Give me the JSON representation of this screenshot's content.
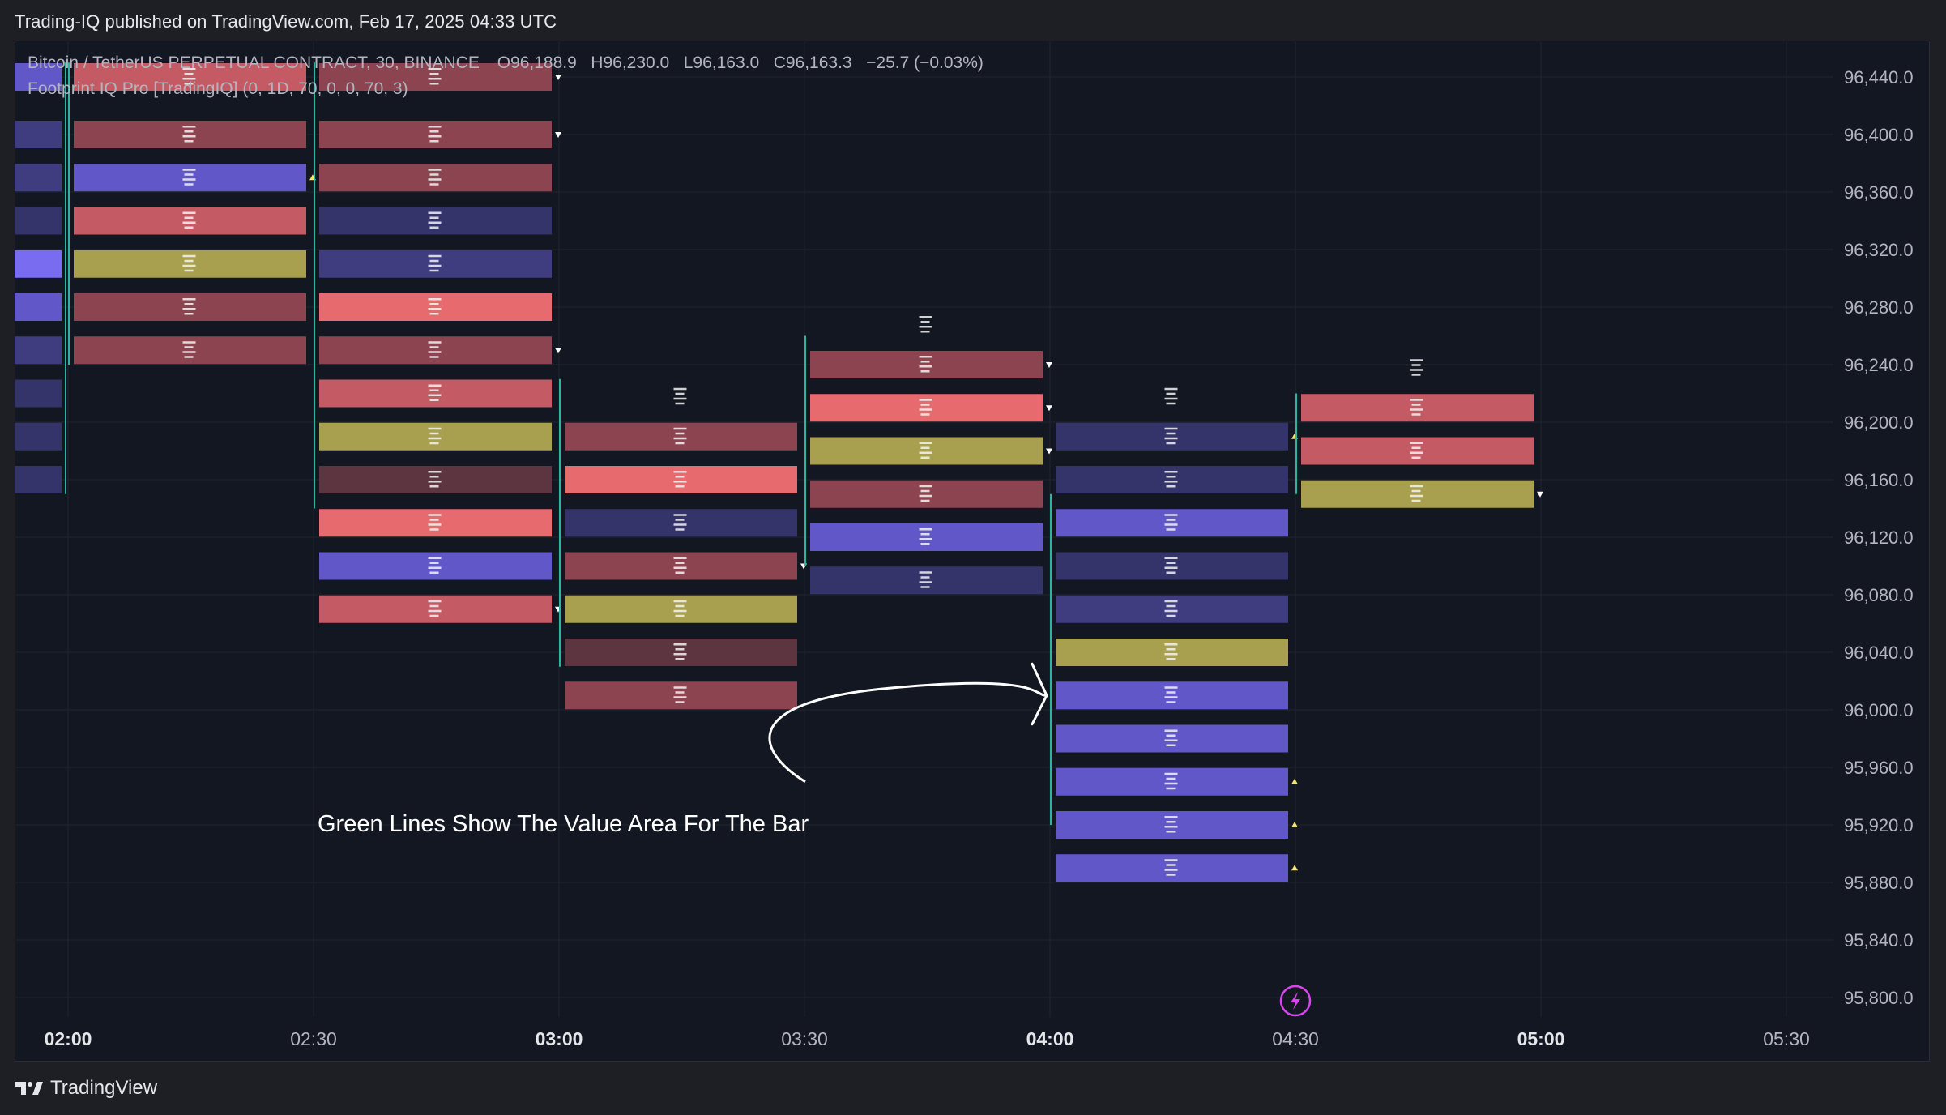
{
  "header": {
    "published": "Trading-IQ published on TradingView.com, Feb 17, 2025 04:33 UTC"
  },
  "legend": {
    "symbol": "Bitcoin / TetherUS PERPETUAL CONTRACT, 30, BINANCE",
    "open": "O96,188.9",
    "high": "H96,230.0",
    "low": "L96,163.0",
    "close": "C96,163.3",
    "change": "−25.7 (−0.03%)",
    "indicator": "Footprint IQ Pro [TradingIQ] (0, 1D, 70, 0, 0, 70, 3)"
  },
  "annotation": {
    "text": "Green Lines Show The Value Area For The Bar"
  },
  "footer": {
    "brand": "TradingView"
  },
  "colors": {
    "background": "#131722",
    "grid": "#1f2430",
    "value_area_line": "#2bb5a0",
    "buy_strong": "#7a6cf0",
    "buy": "#6257c9",
    "buy_weak": "#3f3c80",
    "buy_faint": "#34336a",
    "sell_strong": "#e66a6e",
    "sell": "#c45a63",
    "sell_weak": "#8c4550",
    "sell_faint": "#5c3540",
    "poc": "#a8a04e",
    "alert_icon": "#d946ef"
  },
  "chart_data": {
    "type": "footprint",
    "symbol": "Bitcoin / TetherUS PERPETUAL CONTRACT",
    "interval": "30",
    "exchange": "BINANCE",
    "y_ticks": [
      96440,
      96400,
      96360,
      96320,
      96280,
      96240,
      96200,
      96160,
      96120,
      96080,
      96040,
      96000,
      95960,
      95920,
      95880,
      95840,
      95800
    ],
    "y_tick_labels": [
      "96,440.0",
      "96,400.0",
      "96,360.0",
      "96,320.0",
      "96,280.0",
      "96,240.0",
      "96,200.0",
      "96,160.0",
      "96,120.0",
      "96,080.0",
      "96,040.0",
      "96,000.0",
      "95,960.0",
      "95,920.0",
      "95,880.0",
      "95,840.0",
      "95,800.0"
    ],
    "ylim": [
      95780,
      96470
    ],
    "x_ticks": [
      "02:00",
      "02:30",
      "03:00",
      "03:30",
      "04:00",
      "04:30",
      "05:00",
      "05:30"
    ],
    "x_ticks_bold": [
      true,
      false,
      true,
      false,
      true,
      false,
      true,
      false
    ],
    "grid": true,
    "bars": [
      {
        "time": "01:30",
        "levels": [
          96440,
          96400,
          96370,
          96340,
          96310,
          96280,
          96250,
          96220,
          96190,
          96160
        ],
        "colors": [
          "buy",
          "buy_weak",
          "buy_weak",
          "buy_faint",
          "buy_strong",
          "buy",
          "buy_weak",
          "buy_faint",
          "buy_faint",
          "buy_faint"
        ],
        "value_area": [
          96150,
          96450
        ],
        "markers": []
      },
      {
        "time": "02:00",
        "levels": [
          96440,
          96400,
          96370,
          96340,
          96310,
          96280,
          96250
        ],
        "colors": [
          "sell",
          "sell_weak",
          "buy",
          "sell",
          "poc",
          "sell_weak",
          "sell_weak"
        ],
        "value_area": [
          96240,
          96450
        ],
        "markers": [
          {
            "price": 96370,
            "dir": "up"
          }
        ]
      },
      {
        "time": "02:30",
        "levels": [
          96440,
          96400,
          96370,
          96340,
          96310,
          96280,
          96250,
          96220,
          96190,
          96160,
          96130,
          96100
        ],
        "colors": [
          "sell_weak",
          "sell_weak",
          "sell_weak",
          "buy_faint",
          "buy_weak",
          "sell_strong",
          "sell_weak",
          "sell",
          "poc",
          "sell_faint",
          "sell_strong",
          "buy"
        ],
        "value_area": [
          96140,
          96450
        ],
        "markers": [
          {
            "price": 96440,
            "dir": "down"
          },
          {
            "price": 96400,
            "dir": "down"
          },
          {
            "price": 96250,
            "dir": "down"
          },
          {
            "price": 96070,
            "dir": "down"
          }
        ],
        "extra_levels": [
          {
            "price": 96070,
            "color": "sell"
          }
        ]
      },
      {
        "time": "03:00",
        "levels": [
          96190,
          96160,
          96130,
          96100,
          96070,
          96040,
          96010
        ],
        "colors": [
          "sell_weak",
          "sell_strong",
          "buy_faint",
          "sell_weak",
          "poc",
          "sell_faint",
          "sell_weak"
        ],
        "value_area": [
          96030,
          96230
        ],
        "markers": [
          {
            "price": 96100,
            "dir": "down"
          }
        ],
        "top_label": true
      },
      {
        "time": "03:30",
        "levels": [
          96240,
          96210,
          96180,
          96150,
          96120,
          96090
        ],
        "colors": [
          "sell_weak",
          "sell_strong",
          "poc",
          "sell_weak",
          "buy",
          "buy_faint"
        ],
        "value_area": [
          96100,
          96260
        ],
        "markers": [
          {
            "price": 96240,
            "dir": "down"
          },
          {
            "price": 96210,
            "dir": "down"
          },
          {
            "price": 96180,
            "dir": "down"
          }
        ],
        "top_label": true
      },
      {
        "time": "04:00",
        "levels": [
          96190,
          96160,
          96130,
          96100,
          96070,
          96040,
          96010,
          95980,
          95950,
          95920,
          95890
        ],
        "colors": [
          "buy_faint",
          "buy_faint",
          "buy",
          "buy_faint",
          "buy_weak",
          "poc",
          "buy",
          "buy",
          "buy",
          "buy",
          "buy"
        ],
        "value_area": [
          95920,
          96150
        ],
        "markers": [
          {
            "price": 96190,
            "dir": "up"
          },
          {
            "price": 95950,
            "dir": "up"
          },
          {
            "price": 95920,
            "dir": "up"
          },
          {
            "price": 95890,
            "dir": "up"
          }
        ],
        "top_label": true
      },
      {
        "time": "04:30",
        "levels": [
          96210,
          96180,
          96150
        ],
        "colors": [
          "sell",
          "sell",
          "poc"
        ],
        "value_area": [
          96150,
          96220
        ],
        "markers": [
          {
            "price": 96150,
            "dir": "down"
          }
        ],
        "top_label": true
      }
    ]
  }
}
